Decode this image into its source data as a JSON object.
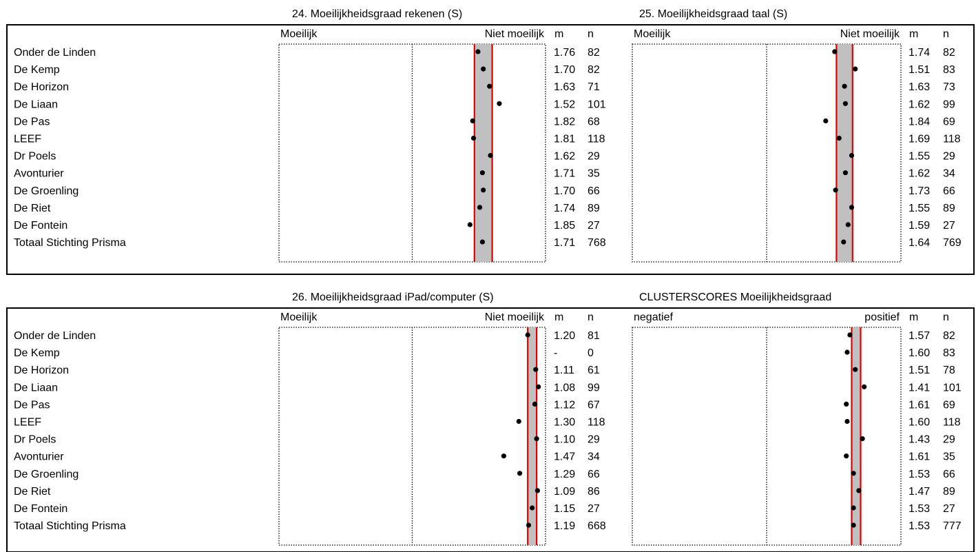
{
  "page": {
    "background": "#ffffff"
  },
  "styles": {
    "band_fill": "#c0c0c0",
    "reference_line_color": "#e00000",
    "dot_color": "#000000"
  },
  "chart_data": [
    {
      "type": "scatter",
      "title": "24. Moeilijkheidsgraad rekenen (S)",
      "left_label": "Moeilijk",
      "right_label": "Niet moeilijk",
      "col_m": "m",
      "col_n": "n",
      "scale": {
        "min": 1,
        "max": 4,
        "reversed": true
      },
      "reference_band": [
        1.6,
        1.8
      ],
      "rows": [
        {
          "name": "Onder de Linden",
          "m": 1.76,
          "m_label": "1.76",
          "n": "82"
        },
        {
          "name": "De Kemp",
          "m": 1.7,
          "m_label": "1.70",
          "n": "82"
        },
        {
          "name": "De Horizon",
          "m": 1.63,
          "m_label": "1.63",
          "n": "71"
        },
        {
          "name": "De Liaan",
          "m": 1.52,
          "m_label": "1.52",
          "n": "101"
        },
        {
          "name": "De Pas",
          "m": 1.82,
          "m_label": "1.82",
          "n": "68"
        },
        {
          "name": "LEEF",
          "m": 1.81,
          "m_label": "1.81",
          "n": "118"
        },
        {
          "name": "Dr Poels",
          "m": 1.62,
          "m_label": "1.62",
          "n": "29"
        },
        {
          "name": "Avonturier",
          "m": 1.71,
          "m_label": "1.71",
          "n": "35"
        },
        {
          "name": "De Groenling",
          "m": 1.7,
          "m_label": "1.70",
          "n": "66"
        },
        {
          "name": "De Riet",
          "m": 1.74,
          "m_label": "1.74",
          "n": "89"
        },
        {
          "name": "De Fontein",
          "m": 1.85,
          "m_label": "1.85",
          "n": "27"
        },
        {
          "name": "Totaal Stichting Prisma",
          "m": 1.71,
          "m_label": "1.71",
          "n": "768"
        }
      ]
    },
    {
      "type": "scatter",
      "title": "25. Moeilijkheidsgraad taal (S)",
      "left_label": "Moeilijk",
      "right_label": "Niet moeilijk",
      "col_m": "m",
      "col_n": "n",
      "scale": {
        "min": 1,
        "max": 4,
        "reversed": true
      },
      "reference_band": [
        1.54,
        1.72
      ],
      "rows": [
        {
          "name": "Onder de Linden",
          "m": 1.74,
          "m_label": "1.74",
          "n": "82"
        },
        {
          "name": "De Kemp",
          "m": 1.51,
          "m_label": "1.51",
          "n": "83"
        },
        {
          "name": "De Horizon",
          "m": 1.63,
          "m_label": "1.63",
          "n": "73"
        },
        {
          "name": "De Liaan",
          "m": 1.62,
          "m_label": "1.62",
          "n": "99"
        },
        {
          "name": "De Pas",
          "m": 1.84,
          "m_label": "1.84",
          "n": "69"
        },
        {
          "name": "LEEF",
          "m": 1.69,
          "m_label": "1.69",
          "n": "118"
        },
        {
          "name": "Dr Poels",
          "m": 1.55,
          "m_label": "1.55",
          "n": "29"
        },
        {
          "name": "Avonturier",
          "m": 1.62,
          "m_label": "1.62",
          "n": "34"
        },
        {
          "name": "De Groenling",
          "m": 1.73,
          "m_label": "1.73",
          "n": "66"
        },
        {
          "name": "De Riet",
          "m": 1.55,
          "m_label": "1.55",
          "n": "89"
        },
        {
          "name": "De Fontein",
          "m": 1.59,
          "m_label": "1.59",
          "n": "27"
        },
        {
          "name": "Totaal Stichting Prisma",
          "m": 1.64,
          "m_label": "1.64",
          "n": "769"
        }
      ]
    },
    {
      "type": "scatter",
      "title": "26. Moeilijkheidsgraad iPad/computer (S)",
      "left_label": "Moeilijk",
      "right_label": "Niet moeilijk",
      "col_m": "m",
      "col_n": "n",
      "scale": {
        "min": 1,
        "max": 4,
        "reversed": true
      },
      "reference_band": [
        1.1,
        1.2
      ],
      "rows": [
        {
          "name": "Onder de Linden",
          "m": 1.2,
          "m_label": "1.20",
          "n": "81"
        },
        {
          "name": "De Kemp",
          "m": null,
          "m_label": "-",
          "n": "0"
        },
        {
          "name": "De Horizon",
          "m": 1.11,
          "m_label": "1.11",
          "n": "61"
        },
        {
          "name": "De Liaan",
          "m": 1.08,
          "m_label": "1.08",
          "n": "99"
        },
        {
          "name": "De Pas",
          "m": 1.12,
          "m_label": "1.12",
          "n": "67"
        },
        {
          "name": "LEEF",
          "m": 1.3,
          "m_label": "1.30",
          "n": "118"
        },
        {
          "name": "Dr Poels",
          "m": 1.1,
          "m_label": "1.10",
          "n": "29"
        },
        {
          "name": "Avonturier",
          "m": 1.47,
          "m_label": "1.47",
          "n": "34"
        },
        {
          "name": "De Groenling",
          "m": 1.29,
          "m_label": "1.29",
          "n": "66"
        },
        {
          "name": "De Riet",
          "m": 1.09,
          "m_label": "1.09",
          "n": "86"
        },
        {
          "name": "De Fontein",
          "m": 1.15,
          "m_label": "1.15",
          "n": "27"
        },
        {
          "name": "Totaal Stichting Prisma",
          "m": 1.19,
          "m_label": "1.19",
          "n": "668"
        }
      ]
    },
    {
      "type": "scatter",
      "title": "CLUSTERSCORES Moeilijkheidsgraad",
      "left_label": "negatief",
      "right_label": "positief",
      "col_m": "m",
      "col_n": "n",
      "scale": {
        "min": 1,
        "max": 4,
        "reversed": true
      },
      "reference_band": [
        1.45,
        1.55
      ],
      "rows": [
        {
          "name": "Onder de Linden",
          "m": 1.57,
          "m_label": "1.57",
          "n": "82"
        },
        {
          "name": "De Kemp",
          "m": 1.6,
          "m_label": "1.60",
          "n": "83"
        },
        {
          "name": "De Horizon",
          "m": 1.51,
          "m_label": "1.51",
          "n": "78"
        },
        {
          "name": "De Liaan",
          "m": 1.41,
          "m_label": "1.41",
          "n": "101"
        },
        {
          "name": "De Pas",
          "m": 1.61,
          "m_label": "1.61",
          "n": "69"
        },
        {
          "name": "LEEF",
          "m": 1.6,
          "m_label": "1.60",
          "n": "118"
        },
        {
          "name": "Dr Poels",
          "m": 1.43,
          "m_label": "1.43",
          "n": "29"
        },
        {
          "name": "Avonturier",
          "m": 1.61,
          "m_label": "1.61",
          "n": "35"
        },
        {
          "name": "De Groenling",
          "m": 1.53,
          "m_label": "1.53",
          "n": "66"
        },
        {
          "name": "De Riet",
          "m": 1.47,
          "m_label": "1.47",
          "n": "89"
        },
        {
          "name": "De Fontein",
          "m": 1.53,
          "m_label": "1.53",
          "n": "27"
        },
        {
          "name": "Totaal Stichting Prisma",
          "m": 1.53,
          "m_label": "1.53",
          "n": "777"
        }
      ]
    }
  ]
}
